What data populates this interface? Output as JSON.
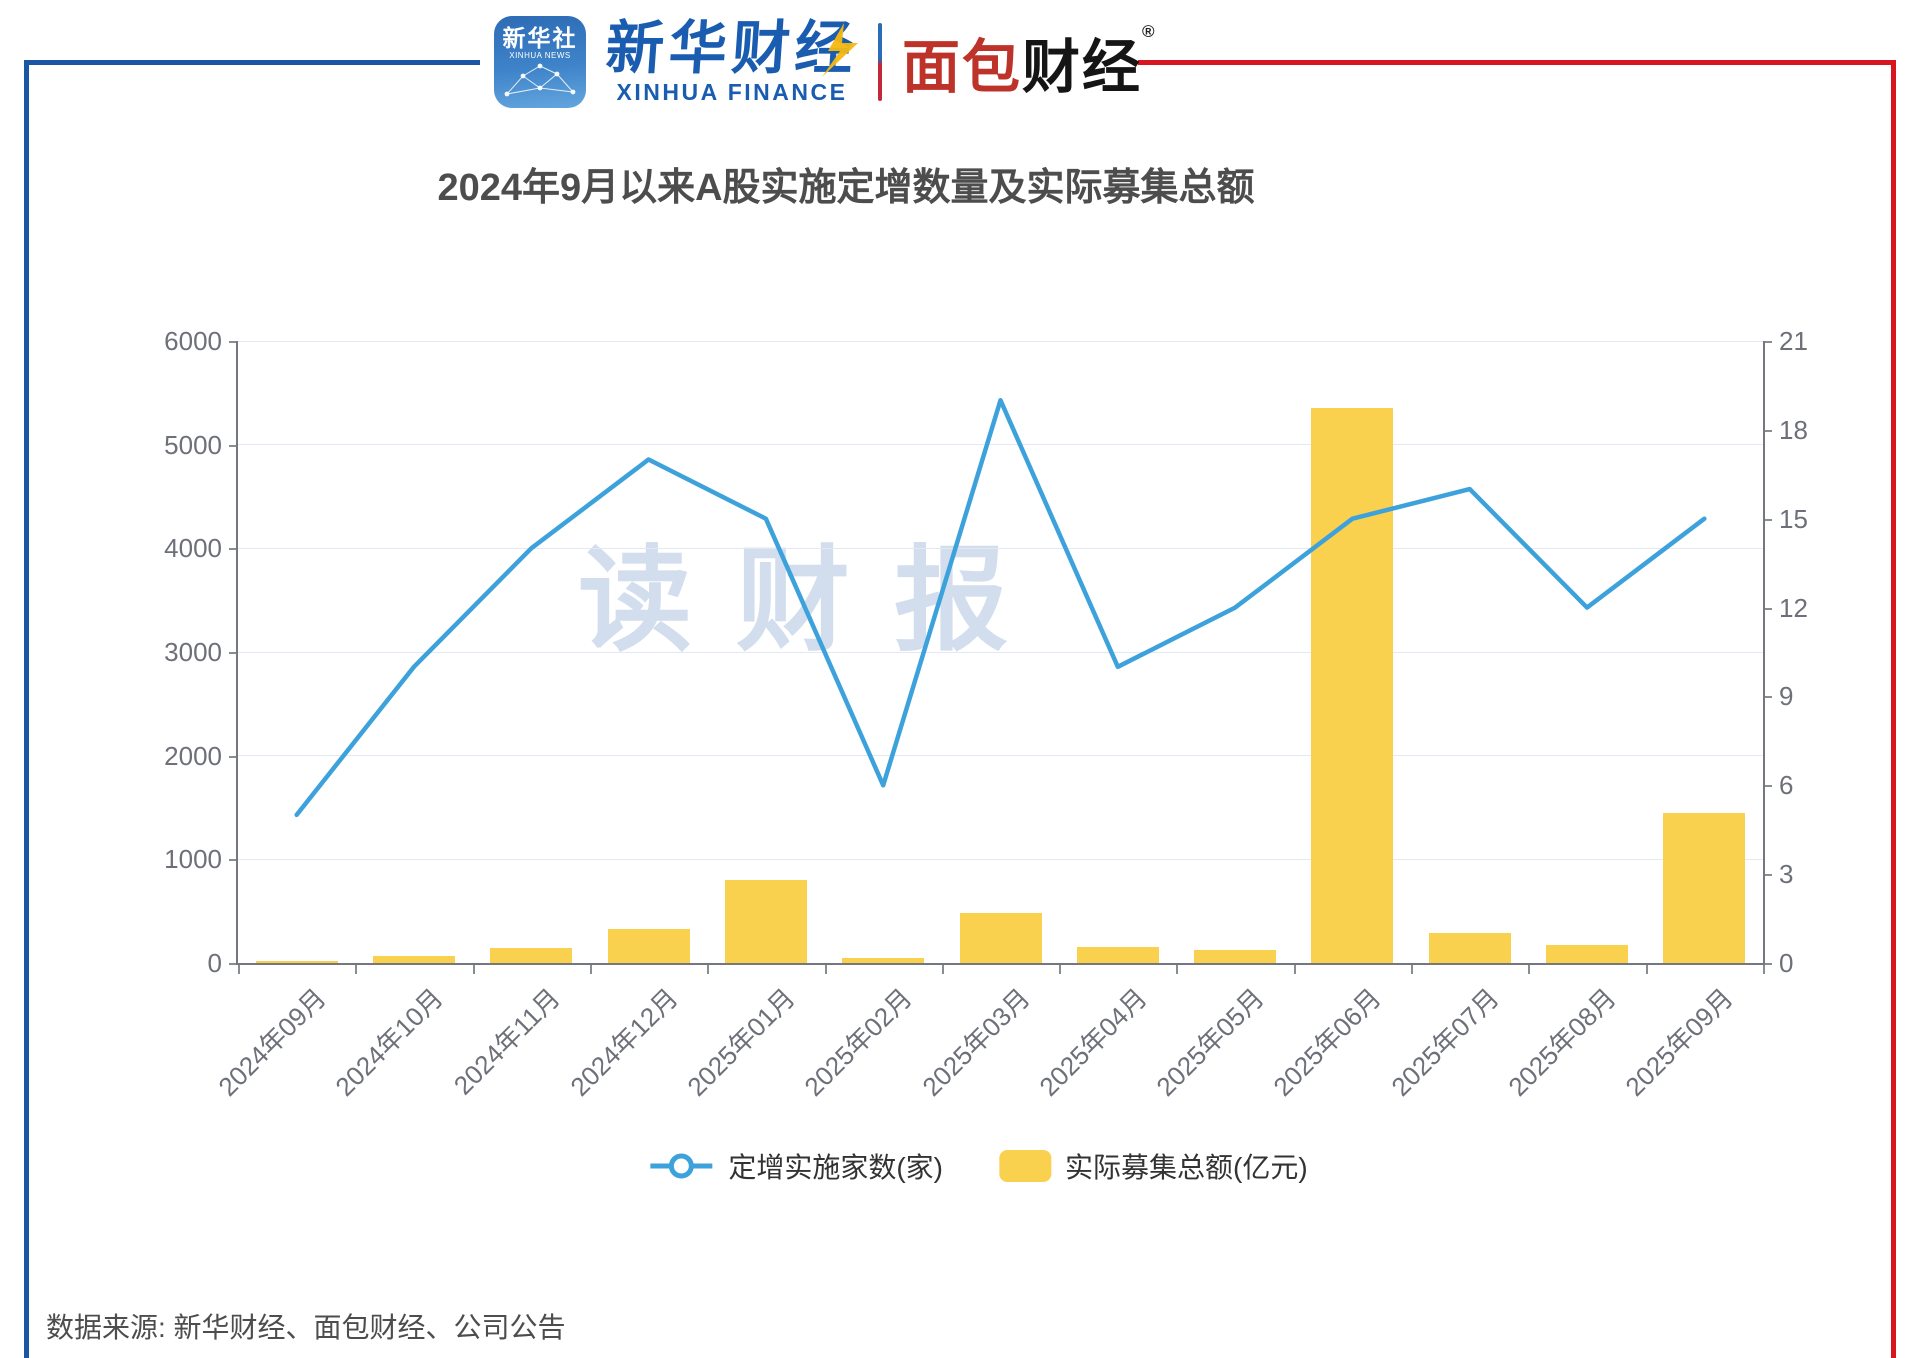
{
  "header": {
    "xinhua_badge": {
      "line1": "新华社",
      "line2": "XINHUA NEWS"
    },
    "xinhua_finance": {
      "cn": "新华财经",
      "en": "XINHUA FINANCE"
    },
    "mianbao": {
      "part1": "面包",
      "part2": "财经",
      "reg": "®"
    }
  },
  "title": "2024年9月以来A股实施定增数量及实际募集总额",
  "watermark": "读财报",
  "source": {
    "text": "数据来源: 新华财经、面包财经、公司公告"
  },
  "chart_data": {
    "type": "line+bar-dual-axis",
    "title": "2024年9月以来A股实施定增数量及实际募集总额",
    "categories": [
      "2024年09月",
      "2024年10月",
      "2024年11月",
      "2024年12月",
      "2025年01月",
      "2025年02月",
      "2025年03月",
      "2025年04月",
      "2025年05月",
      "2025年06月",
      "2025年07月",
      "2025年08月",
      "2025年09月"
    ],
    "series": [
      {
        "name": "定增实施家数(家)",
        "type": "line",
        "axis": "right",
        "color": "#3DA2DC",
        "values": [
          5,
          10,
          14,
          17,
          15,
          6,
          19,
          10,
          12,
          15,
          16,
          12,
          15
        ]
      },
      {
        "name": "实际募集总额(亿元)",
        "type": "bar",
        "axis": "left",
        "color": "#FAD04F",
        "values": [
          20,
          65,
          145,
          325,
          800,
          45,
          480,
          155,
          125,
          5350,
          290,
          175,
          1450
        ]
      }
    ],
    "left_axis": {
      "min": 0,
      "max": 6000,
      "step": 1000,
      "ticks": [
        0,
        1000,
        2000,
        3000,
        4000,
        5000,
        6000
      ]
    },
    "right_axis": {
      "min": 0,
      "max": 21,
      "step": 3,
      "ticks": [
        0,
        3,
        6,
        9,
        12,
        15,
        18,
        21
      ]
    },
    "grid": "horizontal-light",
    "legend_position": "bottom-center"
  }
}
